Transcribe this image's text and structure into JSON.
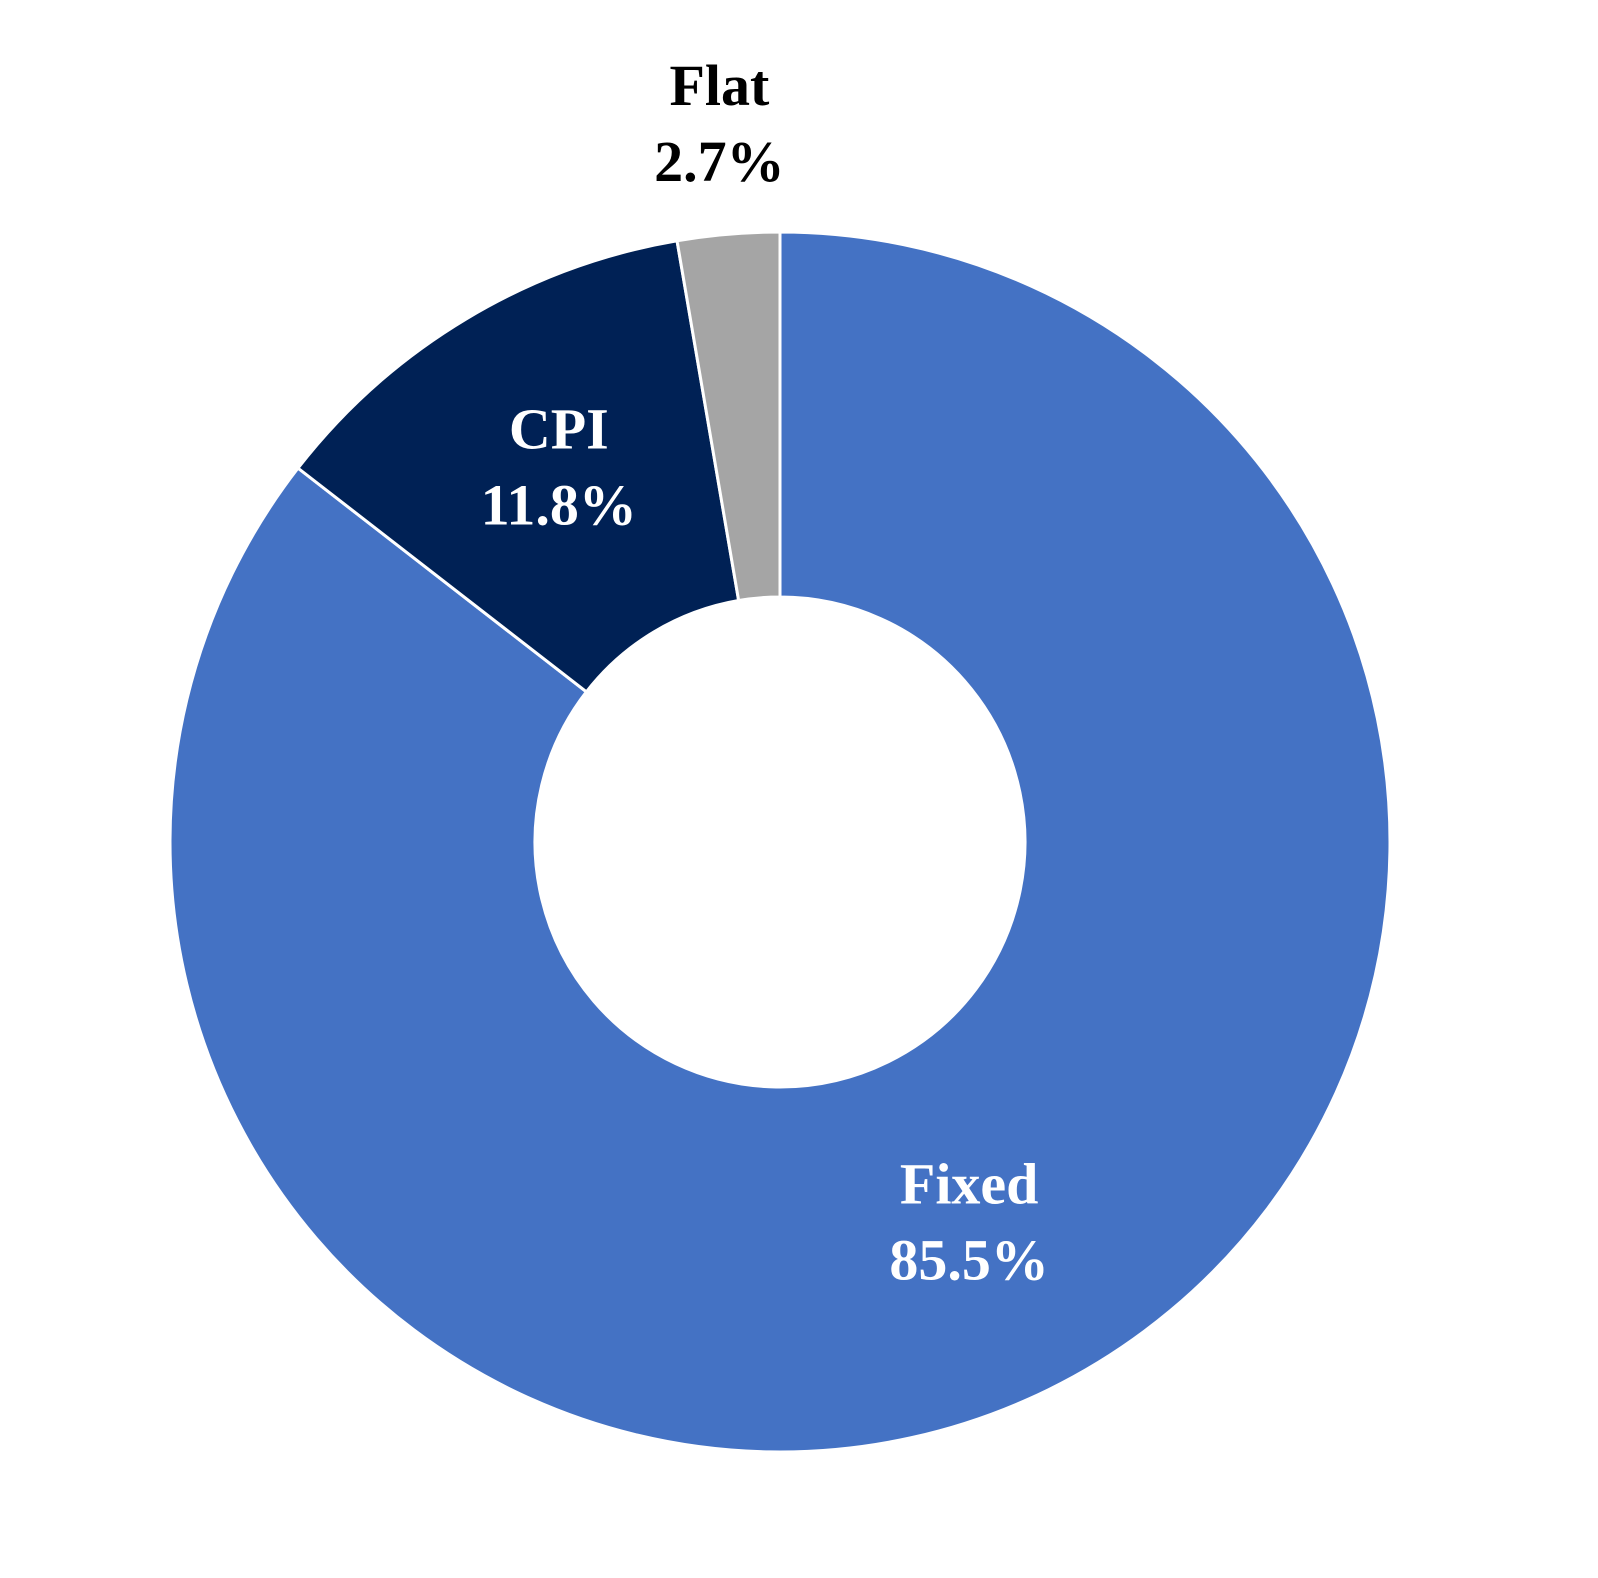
{
  "chart_data": {
    "type": "donut",
    "categories": [
      "Fixed",
      "CPI",
      "Flat"
    ],
    "values": [
      85.5,
      11.8,
      2.7
    ],
    "value_labels": [
      "85.5%",
      "11.8%",
      "2.7%"
    ],
    "colors": [
      "#4472c4",
      "#002155",
      "#a5a5a5"
    ]
  }
}
